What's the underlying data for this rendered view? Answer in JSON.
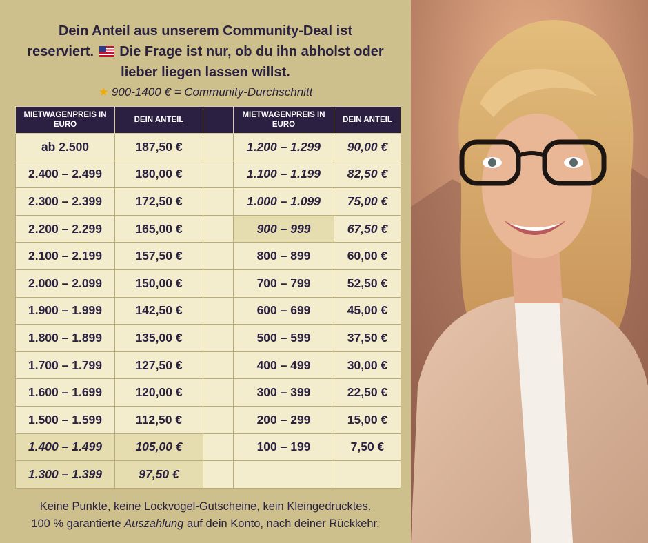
{
  "headline": {
    "line1": "Dein Anteil aus unserem Community-Deal ist",
    "line2_a": "reserviert.",
    "line2_b": "Die Frage ist nur, ob du ihn abholst oder",
    "line3": "lieber liegen lassen willst."
  },
  "subline": {
    "star": "★",
    "text": "900-1400 € = Community-Durchschnitt"
  },
  "table": {
    "headers": {
      "price": "MIETWAGENPREIS IN EURO",
      "share": "DEIN ANTEIL"
    },
    "left_rows": [
      {
        "price": "ab 2.500",
        "share": "187,50 €"
      },
      {
        "price": "2.400 – 2.499",
        "share": "180,00 €"
      },
      {
        "price": "2.300 – 2.399",
        "share": "172,50 €"
      },
      {
        "price": "2.200 – 2.299",
        "share": "165,00 €"
      },
      {
        "price": "2.100 – 2.199",
        "share": "157,50 €"
      },
      {
        "price": "2.000 – 2.099",
        "share": "150,00 €"
      },
      {
        "price": "1.900 – 1.999",
        "share": "142,50 €"
      },
      {
        "price": "1.800 – 1.899",
        "share": "135,00 €"
      },
      {
        "price": "1.700 – 1.799",
        "share": "127,50 €"
      },
      {
        "price": "1.600 – 1.699",
        "share": "120,00 €"
      },
      {
        "price": "1.500 – 1.599",
        "share": "112,50 €"
      },
      {
        "price": "1.400 – 1.499",
        "share": "105,00 €"
      },
      {
        "price": "1.300 – 1.399",
        "share": "97,50 €"
      }
    ],
    "right_rows": [
      {
        "price": "1.200 – 1.299",
        "share": "90,00 €"
      },
      {
        "price": "1.100 – 1.199",
        "share": "82,50 €"
      },
      {
        "price": "1.000 – 1.099",
        "share": "75,00 €"
      },
      {
        "price": "900 – 999",
        "share": "67,50 €"
      },
      {
        "price": "800 – 899",
        "share": "60,00 €"
      },
      {
        "price": "700 – 799",
        "share": "52,50 €"
      },
      {
        "price": "600 – 699",
        "share": "45,00 €"
      },
      {
        "price": "500 – 599",
        "share": "37,50 €"
      },
      {
        "price": "400 – 499",
        "share": "30,00 €"
      },
      {
        "price": "300 – 399",
        "share": "22,50 €"
      },
      {
        "price": "200 – 299",
        "share": "15,00 €"
      },
      {
        "price": "100 – 199",
        "share": "7,50 €"
      },
      {
        "price": "",
        "share": ""
      }
    ]
  },
  "footer": {
    "line1": "Keine Punkte, keine Lockvogel-Gutscheine, kein Kleingedrucktes.",
    "line2_a": "100 % garantierte",
    "line2_em": "Auszahlung",
    "line2_b": "auf dein Konto, nach deiner Rückkehr."
  },
  "colors": {
    "background": "#cdc08c",
    "header_fill": "#2b1f42",
    "cell_fill": "#f3eccd",
    "highlight_fill": "#e5dcaf",
    "text": "#2a2240",
    "star": "#f2a900"
  },
  "icons": {
    "flag": "us-flag-icon",
    "star": "star-icon"
  }
}
